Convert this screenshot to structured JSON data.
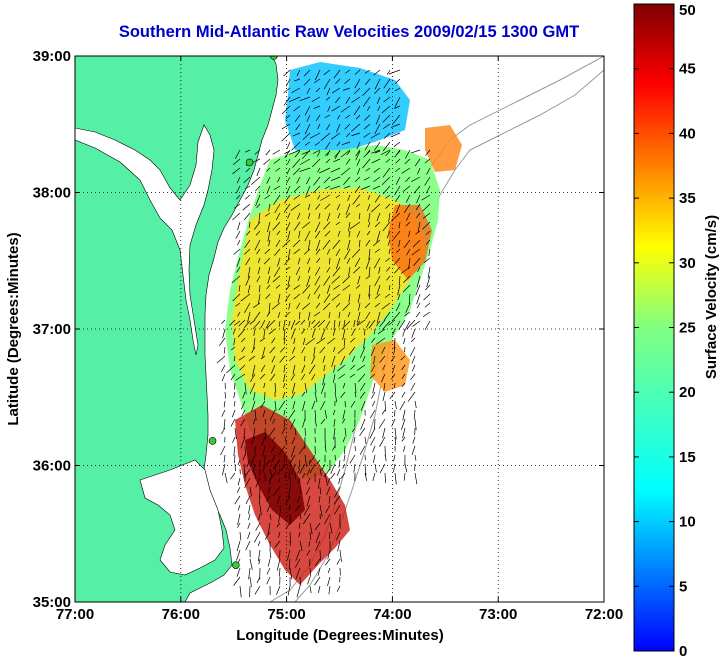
{
  "chart_data": {
    "type": "heatmap",
    "title": "Southern Mid-Atlantic Raw Velocities 2009/02/15 1300 GMT",
    "xlabel": "Longitude (Degrees:Minutes)",
    "ylabel": "Latitude (Degrees:Minutes)",
    "colorbar_label": "Surface Velocity (cm/s)",
    "x_ticks": [
      "77:00",
      "76:00",
      "75:00",
      "74:00",
      "73:00",
      "72:00"
    ],
    "x_values": [
      -77,
      -76,
      -75,
      -74,
      -73,
      -72
    ],
    "y_ticks": [
      "39:00",
      "38:00",
      "37:00",
      "36:00",
      "35:00"
    ],
    "y_values": [
      39,
      38,
      37,
      36,
      35
    ],
    "xlim": [
      -77,
      -72
    ],
    "ylim": [
      35,
      39
    ],
    "colorbar_ticks": [
      0,
      5,
      10,
      15,
      20,
      25,
      30,
      35,
      40,
      45,
      50
    ],
    "colorbar_range": [
      0,
      50
    ],
    "grid": true,
    "land_color": "#55efa5",
    "station_color": "#33cc33",
    "stations": [
      {
        "lon": -75.12,
        "lat": 39.0
      },
      {
        "lon": -75.35,
        "lat": 38.22
      },
      {
        "lon": -75.7,
        "lat": 36.18
      },
      {
        "lon": -75.48,
        "lat": 35.27
      }
    ]
  }
}
